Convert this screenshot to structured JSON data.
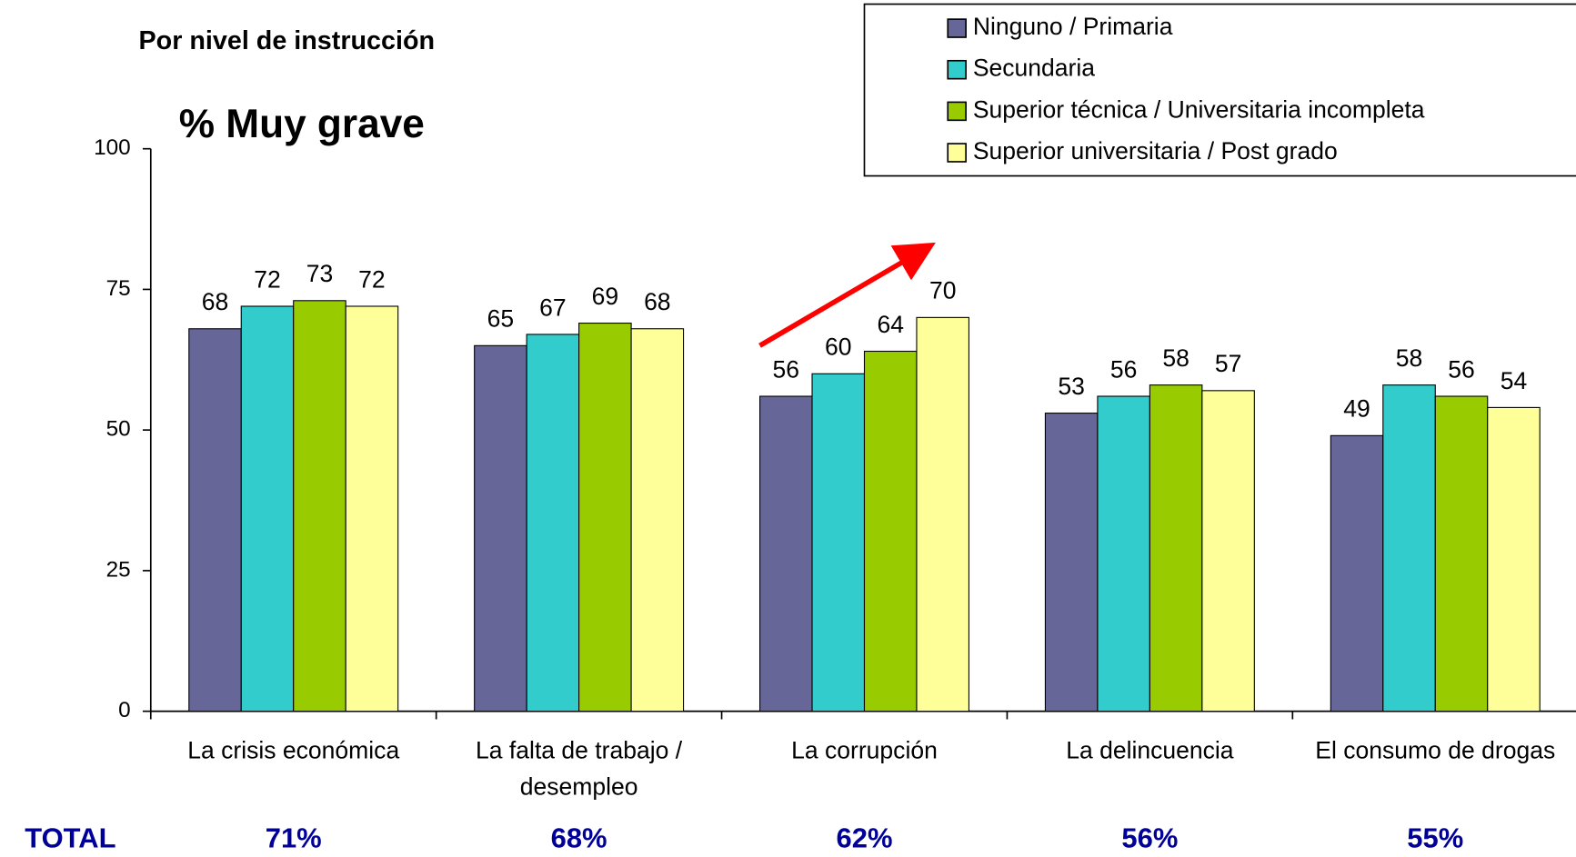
{
  "chart_data": {
    "type": "bar",
    "title": "Por nivel de instrucción",
    "subtitle": "% Muy grave",
    "categories": [
      "La crisis económica",
      "La falta de trabajo / desempleo",
      "La corrupción",
      "La delincuencia",
      "El consumo de drogas"
    ],
    "series": [
      {
        "name": "Ninguno / Primaria",
        "color": "#666699",
        "values": [
          68,
          65,
          56,
          53,
          49
        ]
      },
      {
        "name": "Secundaria",
        "color": "#33cccc",
        "values": [
          72,
          67,
          60,
          56,
          58
        ]
      },
      {
        "name": "Superior técnica / Universitaria incompleta",
        "color": "#99cc00",
        "values": [
          73,
          69,
          64,
          58,
          56
        ]
      },
      {
        "name": "Superior universitaria / Post grado",
        "color": "#ffff99",
        "values": [
          72,
          68,
          70,
          57,
          54
        ]
      }
    ],
    "ylim": [
      0,
      100
    ],
    "yticks": [
      0,
      25,
      50,
      75,
      100
    ],
    "legend": "top-right",
    "totals": {
      "label": "TOTAL",
      "values": [
        71,
        68,
        62,
        56,
        55
      ],
      "value_labels": [
        "71%",
        "68%",
        "62%",
        "56%",
        "55%"
      ]
    }
  }
}
